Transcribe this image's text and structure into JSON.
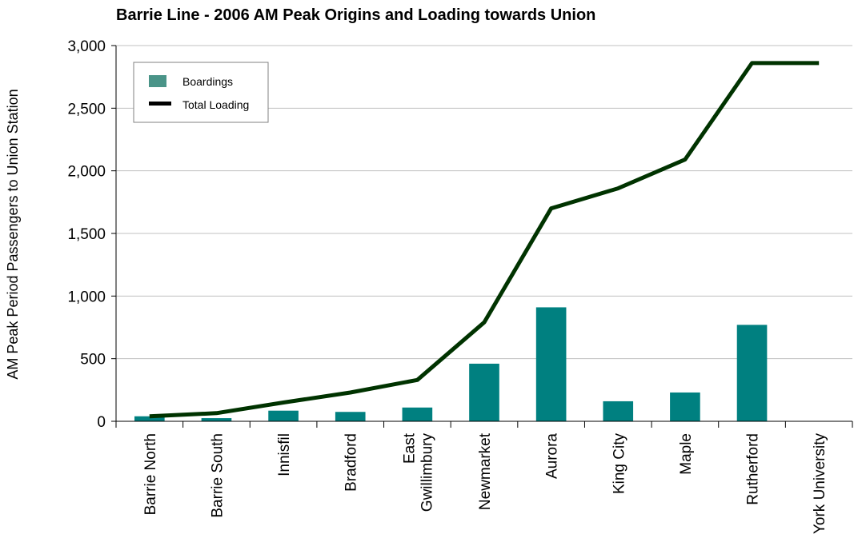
{
  "chart_data": {
    "type": "bar",
    "title": "Barrie Line - 2006 AM Peak Origins and Loading towards Union",
    "xlabel": "",
    "ylabel": "AM Peak Period Passengers to Union Station",
    "ylim": [
      0,
      3000
    ],
    "yticks": [
      0,
      500,
      1000,
      1500,
      2000,
      2500,
      3000
    ],
    "ytick_labels": [
      "0",
      "500",
      "1,000",
      "1,500",
      "2,000",
      "2,500",
      "3,000"
    ],
    "grid": true,
    "legend_position": "top-left",
    "categories": [
      [
        "Barrie North"
      ],
      [
        "Barrie South"
      ],
      [
        "Innisfil"
      ],
      [
        "Bradford"
      ],
      [
        "East",
        "Gwillimbury"
      ],
      [
        "Newmarket"
      ],
      [
        "Aurora"
      ],
      [
        "King City"
      ],
      [
        "Maple"
      ],
      [
        "Rutherford"
      ],
      [
        "York University"
      ]
    ],
    "series": [
      {
        "name": "Boardings",
        "type": "bar",
        "color": "#008080",
        "values": [
          40,
          25,
          85,
          75,
          110,
          460,
          910,
          160,
          230,
          770,
          0
        ]
      },
      {
        "name": "Total Loading",
        "type": "line",
        "color": "#003300",
        "values": [
          40,
          65,
          150,
          230,
          330,
          790,
          1700,
          1860,
          2090,
          2860,
          2860
        ]
      }
    ]
  }
}
